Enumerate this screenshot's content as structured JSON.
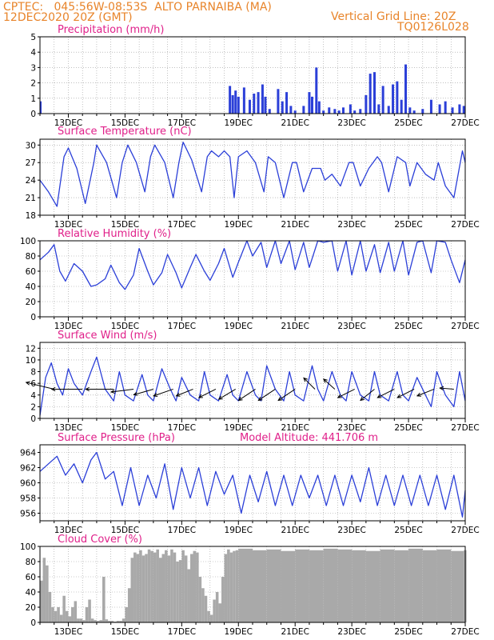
{
  "header": {
    "line1_left": "CPTEC:   045:56W-08:53S  ALTO PARNAIBA (MA)",
    "line2_left": "12DEC2020 20Z (GMT)",
    "line1_right": "Vertical Grid Line: 20Z",
    "line2_right": "TQ0126L028"
  },
  "x_tick_labels": [
    "13DEC",
    "15DEC",
    "17DEC",
    "19DEC",
    "21DEC",
    "23DEC",
    "25DEC",
    "27DEC"
  ],
  "colors": {
    "title": "#e0208a",
    "header": "#e8842a",
    "series": "#2b3fd8",
    "cloud": "#a9a9a9",
    "arrow": "#000000"
  },
  "panels": {
    "precip": {
      "title": "Precipitation  (mm/h)"
    },
    "temp": {
      "title": "Surface Temperature (nC)"
    },
    "rh": {
      "title": "Relative Humidity (%)"
    },
    "wind": {
      "title": "Surface Wind (m/s)"
    },
    "pres": {
      "title": "Surface Pressure (hPa)",
      "extra": "Model Altitude: 441.706 m"
    },
    "cloud": {
      "title": "Cloud Cover (%)"
    }
  },
  "chart_data": [
    {
      "type": "bar",
      "title": "Precipitation  (mm/h)",
      "ylim": [
        0,
        5
      ],
      "yticks": [
        0,
        1,
        2,
        3,
        4,
        5
      ],
      "x_days": [
        18.7,
        18.8,
        18.9,
        19.0,
        19.2,
        19.4,
        19.55,
        19.7,
        19.85,
        19.95,
        20.1,
        20.4,
        20.55,
        20.7,
        20.85,
        21.0,
        21.3,
        21.5,
        21.6,
        21.75,
        21.85,
        22.0,
        22.2,
        22.4,
        22.55,
        22.7,
        22.95,
        23.1,
        23.3,
        23.5,
        23.65,
        23.8,
        23.95,
        24.1,
        24.3,
        24.45,
        24.6,
        24.75,
        24.9,
        25.05,
        25.2,
        25.5,
        25.8,
        26.1,
        26.3,
        26.55,
        26.8,
        26.95
      ],
      "values": [
        1.8,
        1.2,
        1.5,
        1.1,
        1.7,
        0.9,
        1.3,
        1.4,
        1.9,
        1.1,
        0.3,
        1.6,
        0.8,
        1.4,
        0.5,
        0.2,
        0.5,
        1.4,
        1.1,
        3.0,
        0.8,
        0.2,
        0.4,
        0.3,
        0.2,
        0.4,
        0.6,
        0.2,
        0.3,
        1.2,
        2.6,
        2.7,
        0.6,
        1.8,
        0.5,
        1.9,
        2.1,
        0.9,
        3.2,
        0.4,
        0.2,
        0.3,
        0.9,
        0.6,
        0.8,
        0.4,
        0.6,
        0.5
      ]
    },
    {
      "type": "line",
      "title": "Surface Temperature (nC)",
      "ylim": [
        18,
        31
      ],
      "yticks": [
        18,
        21,
        24,
        27,
        30
      ],
      "x_days": [
        12,
        12.3,
        12.6,
        12.85,
        13.0,
        13.3,
        13.6,
        13.9,
        14.0,
        14.35,
        14.7,
        14.9,
        15.1,
        15.4,
        15.7,
        15.9,
        16.05,
        16.4,
        16.7,
        16.9,
        17.05,
        17.35,
        17.7,
        17.9,
        18.05,
        18.3,
        18.5,
        18.7,
        18.85,
        19.0,
        19.3,
        19.6,
        19.9,
        20.05,
        20.3,
        20.6,
        20.9,
        21.05,
        21.3,
        21.6,
        21.9,
        22.05,
        22.3,
        22.6,
        22.9,
        23.05,
        23.3,
        23.6,
        23.9,
        24.05,
        24.3,
        24.6,
        24.9,
        25.05,
        25.3,
        25.6,
        25.9,
        26.05,
        26.3,
        26.6,
        26.9,
        27.0
      ],
      "values": [
        24,
        22,
        19.5,
        28,
        29.5,
        26,
        20,
        27,
        30,
        27,
        21,
        27,
        30,
        27,
        22,
        28,
        30,
        27,
        21,
        27,
        30.5,
        27.5,
        22,
        28,
        29,
        28,
        29,
        28,
        21,
        28,
        29,
        27,
        22,
        28,
        27,
        21,
        27,
        27,
        22,
        26,
        26,
        24,
        25,
        23,
        27,
        27,
        23,
        26,
        28,
        27,
        22,
        28,
        27,
        23,
        27,
        25,
        24,
        27,
        23,
        21,
        29,
        27
      ]
    },
    {
      "type": "line",
      "title": "Relative Humidity (%)",
      "ylim": [
        0,
        100
      ],
      "yticks": [
        0,
        20,
        40,
        60,
        80,
        100
      ],
      "x_days": [
        12,
        12.3,
        12.5,
        12.7,
        12.9,
        13.2,
        13.5,
        13.8,
        14.0,
        14.3,
        14.5,
        14.8,
        15.0,
        15.3,
        15.5,
        15.8,
        16.0,
        16.3,
        16.5,
        16.8,
        17.0,
        17.3,
        17.5,
        17.8,
        18.0,
        18.3,
        18.5,
        18.8,
        19.0,
        19.3,
        19.5,
        19.8,
        20.0,
        20.3,
        20.5,
        20.8,
        21.0,
        21.3,
        21.5,
        21.8,
        22.0,
        22.3,
        22.5,
        22.8,
        23.0,
        23.3,
        23.5,
        23.8,
        24.0,
        24.3,
        24.5,
        24.8,
        25.0,
        25.3,
        25.5,
        25.8,
        26.0,
        26.3,
        26.5,
        26.8,
        27.0
      ],
      "values": [
        75,
        85,
        95,
        60,
        47,
        70,
        60,
        40,
        42,
        50,
        68,
        45,
        36,
        55,
        90,
        60,
        42,
        58,
        82,
        58,
        38,
        65,
        82,
        60,
        48,
        70,
        90,
        52,
        72,
        100,
        80,
        98,
        65,
        100,
        70,
        100,
        62,
        98,
        65,
        100,
        98,
        100,
        60,
        100,
        55,
        100,
        60,
        95,
        58,
        98,
        60,
        100,
        55,
        98,
        100,
        58,
        100,
        98,
        75,
        45,
        75
      ]
    },
    {
      "type": "line",
      "title": "Surface Wind (m/s)",
      "ylim": [
        0,
        13
      ],
      "yticks": [
        0,
        2,
        4,
        6,
        8,
        10,
        12
      ],
      "x_days": [
        12,
        12.2,
        12.4,
        12.6,
        12.8,
        13.0,
        13.2,
        13.5,
        13.8,
        14.0,
        14.3,
        14.6,
        14.8,
        15.0,
        15.3,
        15.6,
        15.8,
        16.0,
        16.3,
        16.6,
        16.8,
        17.0,
        17.3,
        17.6,
        17.8,
        18.0,
        18.3,
        18.6,
        18.8,
        19.0,
        19.3,
        19.6,
        19.8,
        20.0,
        20.3,
        20.6,
        20.8,
        21.0,
        21.3,
        21.6,
        21.8,
        22.0,
        22.3,
        22.6,
        22.8,
        23.0,
        23.3,
        23.6,
        23.8,
        24.0,
        24.3,
        24.6,
        24.8,
        25.0,
        25.3,
        25.6,
        25.8,
        26.0,
        26.3,
        26.6,
        26.8,
        27.0
      ],
      "values": [
        0.5,
        7,
        9.5,
        6,
        4,
        8.5,
        6,
        4,
        8,
        10.5,
        5,
        3,
        8,
        4,
        3,
        7.5,
        4,
        3,
        8.5,
        5,
        3,
        7,
        4,
        3,
        8,
        4,
        3,
        7.5,
        4,
        3,
        8,
        4,
        3,
        9,
        5,
        3,
        8,
        4,
        3,
        9,
        5,
        3,
        8,
        4,
        3,
        8,
        4,
        3,
        8,
        4,
        3,
        8,
        4,
        3,
        7,
        4,
        2,
        8,
        4,
        2,
        8,
        3
      ],
      "arrows": [
        {
          "day": 12.5,
          "u": -5,
          "v": 1.2
        },
        {
          "day": 13.5,
          "u": -5.5,
          "v": 0
        },
        {
          "day": 14.6,
          "u": -5,
          "v": 0
        },
        {
          "day": 15.3,
          "u": -4,
          "v": -0.5
        },
        {
          "day": 16.0,
          "u": -3.5,
          "v": -1
        },
        {
          "day": 16.7,
          "u": -3.5,
          "v": -1.2
        },
        {
          "day": 17.4,
          "u": -3,
          "v": -1.2
        },
        {
          "day": 18.2,
          "u": -3,
          "v": -1.5
        },
        {
          "day": 18.9,
          "u": -3,
          "v": -1.8
        },
        {
          "day": 19.6,
          "u": -3,
          "v": -2
        },
        {
          "day": 20.3,
          "u": -3,
          "v": -2
        },
        {
          "day": 21.0,
          "u": -3,
          "v": -2
        },
        {
          "day": 21.7,
          "u": -2,
          "v": 2
        },
        {
          "day": 22.4,
          "u": -2,
          "v": 1.8
        },
        {
          "day": 23.1,
          "u": -3,
          "v": -1.5
        },
        {
          "day": 23.8,
          "u": -2.5,
          "v": -2
        },
        {
          "day": 24.5,
          "u": -3,
          "v": -1.5
        },
        {
          "day": 25.2,
          "u": -3,
          "v": -1.5
        },
        {
          "day": 25.9,
          "u": -3,
          "v": -1.2
        },
        {
          "day": 26.6,
          "u": -2.5,
          "v": 0.2
        }
      ]
    },
    {
      "type": "line",
      "title": "Surface Pressure (hPa)",
      "ylim": [
        955,
        965
      ],
      "yticks": [
        956,
        958,
        960,
        962,
        964
      ],
      "x_days": [
        12,
        12.3,
        12.6,
        12.9,
        13.2,
        13.5,
        13.8,
        14.0,
        14.3,
        14.6,
        14.9,
        15.2,
        15.5,
        15.8,
        16.1,
        16.4,
        16.7,
        17.0,
        17.3,
        17.6,
        17.9,
        18.2,
        18.5,
        18.8,
        19.1,
        19.4,
        19.7,
        20.0,
        20.3,
        20.6,
        20.9,
        21.2,
        21.5,
        21.8,
        22.1,
        22.4,
        22.7,
        23.0,
        23.3,
        23.6,
        23.9,
        24.2,
        24.5,
        24.8,
        25.1,
        25.4,
        25.7,
        26.0,
        26.3,
        26.6,
        26.9,
        27.0
      ],
      "values": [
        961.5,
        962.5,
        963.5,
        961,
        962.5,
        960,
        963,
        964,
        960.5,
        961.5,
        957,
        962,
        957,
        961,
        958,
        962.5,
        956.5,
        962,
        958,
        962,
        957,
        961.5,
        958.5,
        961,
        956,
        961,
        957.5,
        961.5,
        957,
        961,
        957,
        961,
        958,
        961,
        957,
        961,
        957,
        961,
        957.5,
        962,
        957,
        961,
        957,
        961,
        957,
        961,
        957,
        961,
        956.5,
        961,
        955.5,
        959
      ]
    },
    {
      "type": "bar",
      "title": "Cloud Cover (%)",
      "ylim": [
        0,
        100
      ],
      "yticks": [
        0,
        20,
        40,
        60,
        80,
        100
      ],
      "x_days": [
        12,
        12.1,
        12.2,
        12.3,
        12.4,
        12.5,
        12.6,
        12.7,
        12.8,
        12.9,
        13.0,
        13.1,
        13.2,
        13.3,
        13.4,
        13.5,
        13.6,
        13.7,
        13.8,
        13.9,
        14.0,
        14.1,
        14.2,
        14.3,
        14.4,
        14.5,
        14.6,
        14.7,
        14.8,
        14.9,
        15.0,
        15.1,
        15.2,
        15.3,
        15.4,
        15.5,
        15.6,
        15.7,
        15.8,
        15.9,
        16.0,
        16.1,
        16.2,
        16.3,
        16.4,
        16.5,
        16.6,
        16.7,
        16.8,
        16.9,
        17.0,
        17.1,
        17.2,
        17.3,
        17.4,
        17.5,
        17.6,
        17.7,
        17.8,
        17.9,
        18.0,
        18.1,
        18.2,
        18.3,
        18.4,
        18.5,
        18.6,
        18.7,
        18.8,
        18.9,
        19.0,
        19.5,
        20.0,
        20.5,
        21.0,
        21.5,
        22.0,
        22.5,
        23.0,
        23.5,
        24.0,
        24.5,
        25.0,
        25.5,
        26.0,
        26.5,
        26.95
      ],
      "values": [
        55,
        85,
        75,
        40,
        20,
        15,
        20,
        10,
        35,
        15,
        8,
        20,
        28,
        5,
        5,
        3,
        20,
        30,
        5,
        3,
        2,
        3,
        60,
        4,
        2,
        2,
        1,
        2,
        2,
        5,
        20,
        45,
        85,
        92,
        90,
        95,
        88,
        90,
        96,
        94,
        92,
        96,
        85,
        90,
        95,
        88,
        96,
        92,
        80,
        82,
        95,
        88,
        70,
        90,
        94,
        92,
        60,
        45,
        35,
        15,
        10,
        30,
        40,
        25,
        60,
        90,
        96,
        92,
        94,
        95,
        97,
        95,
        96,
        94,
        96,
        95,
        97,
        96,
        95,
        94,
        96,
        95,
        97,
        95,
        96,
        94,
        95
      ]
    }
  ]
}
